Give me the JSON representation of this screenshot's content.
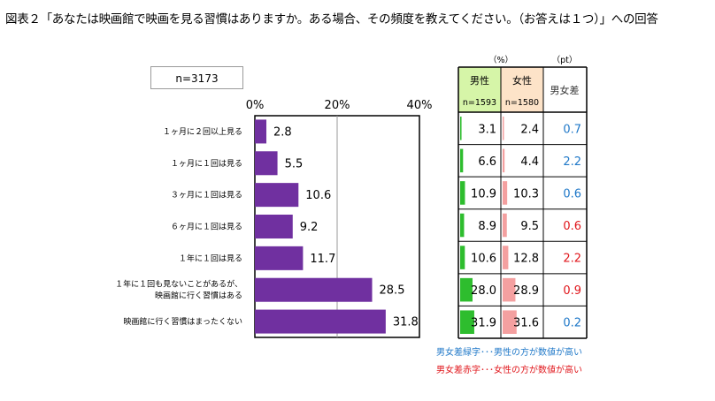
{
  "title": "図表２「あなたは映画館で映画を見る習慣はありますか。ある場合、その頻度を教えてください。（お答えは１つ）」への回答",
  "sample_label": "n=3173",
  "table": {
    "unit_pct": "（%）",
    "unit_pt": "（pt）",
    "male_header": "男性",
    "female_header": "女性",
    "diff_header": "男女差",
    "male_n": "n=1593",
    "female_n": "n=1580",
    "rows": [
      {
        "male": 3.1,
        "female": 2.4,
        "diff": "0.7",
        "diff_color": "#1f78c8"
      },
      {
        "male": 6.6,
        "female": 4.4,
        "diff": "2.2",
        "diff_color": "#1f78c8"
      },
      {
        "male": 10.9,
        "female": 10.3,
        "diff": "0.6",
        "diff_color": "#1f78c8"
      },
      {
        "male": 8.9,
        "female": 9.5,
        "diff": "0.6",
        "diff_color": "#e0161b"
      },
      {
        "male": 10.6,
        "female": 12.8,
        "diff": "2.2",
        "diff_color": "#e0161b"
      },
      {
        "male": 28.0,
        "female": 28.9,
        "diff": "0.9",
        "diff_color": "#e0161b"
      },
      {
        "male": 31.9,
        "female": 31.6,
        "diff": "0.2",
        "diff_color": "#1f78c8"
      }
    ]
  },
  "legend_notes": {
    "green": "男女差緑字･･･男性の方が数値が高い",
    "red": "男女差赤字･･･女性の方が数値が高い"
  },
  "colors": {
    "bar": "#7030a0",
    "male_bar": "#2ebd2e",
    "female_bar": "#f4a0a0",
    "male_header_bg": "#d6f5a8",
    "female_header_bg": "#fde3c8",
    "note_green": "#1f78c8",
    "note_red": "#e0161b"
  },
  "chart_data": {
    "type": "bar",
    "orientation": "horizontal",
    "categories": [
      "１ヶ月に２回以上見る",
      "１ヶ月に１回は見る",
      "３ヶ月に１回は見る",
      "６ヶ月に１回は見る",
      "１年に１回は見る",
      "１年に１回も見ないことがあるが、映画館に行く習慣はある",
      "映画館に行く習慣はまったくない"
    ],
    "category_lines": [
      [
        "１ヶ月に２回以上見る"
      ],
      [
        "１ヶ月に１回は見る"
      ],
      [
        "３ヶ月に１回は見る"
      ],
      [
        "６ヶ月に１回は見る"
      ],
      [
        "１年に１回は見る"
      ],
      [
        "１年に１回も見ないことがあるが、",
        "映画館に行く習慣はある"
      ],
      [
        "映画館に行く習慣はまったくない"
      ]
    ],
    "values": [
      2.8,
      5.5,
      10.6,
      9.2,
      11.7,
      28.5,
      31.8
    ],
    "xlim": [
      0,
      40
    ],
    "ticks": [
      "0%",
      "20%",
      "40%"
    ],
    "tick_values": [
      0,
      20,
      40
    ],
    "grid": "vertical gridline at 20%"
  }
}
